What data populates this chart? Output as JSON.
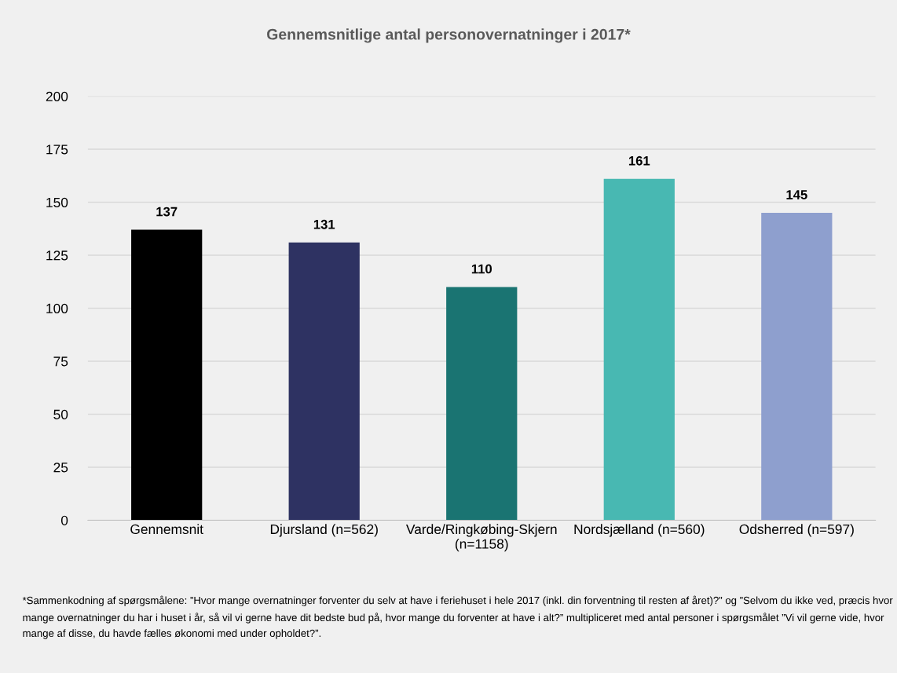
{
  "chart_data": {
    "type": "bar",
    "title": "Gennemsnitlige antal personovernatninger i 2017*",
    "categories": [
      "Gennemsnit",
      "Djursland (n=562)",
      "Varde/Ringkøbing-Skjern\n(n=1158)",
      "Nordsjælland (n=560)",
      "Odsherred (n=597)"
    ],
    "values": [
      137,
      131,
      110,
      161,
      145
    ],
    "colors": [
      "#000000",
      "#2e3262",
      "#1a7472",
      "#48b8b2",
      "#8e9fce"
    ],
    "data_labels": true,
    "ylim": [
      0,
      200
    ],
    "yticks": [
      0,
      25,
      50,
      75,
      100,
      125,
      150,
      175,
      200
    ],
    "grid": "y",
    "annotations": [
      "*Sammenkodning af spørgsmålene: ”Hvor mange overnatninger forventer du selv at have i feriehuset i hele 2017 (inkl. din forventning til resten af året)?” og ”Selvom du ikke ved, præcis hvor mange overnatninger du har i huset i år, så vil vi gerne have dit bedste bud på, hvor mange du forventer at have i alt?” multipliceret med antal personer i spørgsmålet ”Vi vil gerne vide, hvor mange af disse, du havde fælles økonomi med under opholdet?”."
    ]
  }
}
